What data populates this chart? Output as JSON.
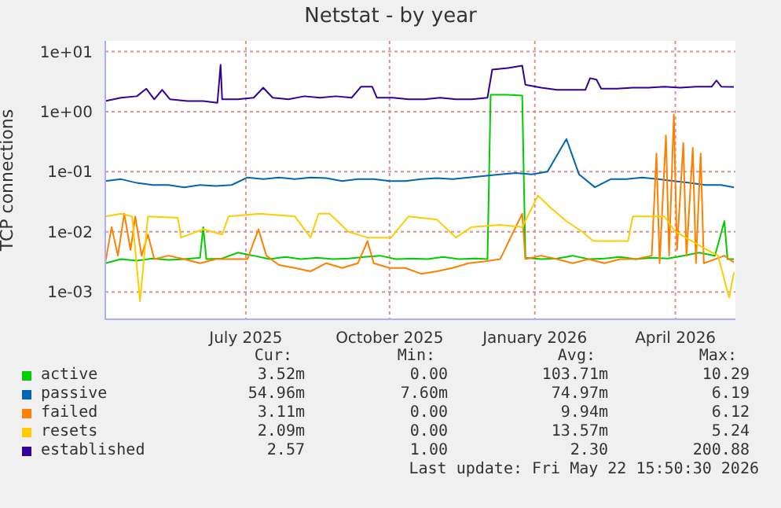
{
  "chart_data": {
    "type": "line",
    "title": "Netstat - by year",
    "ylabel": "TCP connections",
    "log": "y",
    "grid": true,
    "legend": "bottom",
    "marker": "none",
    "line_style": "solid",
    "xlim": [
      "2025-04-19",
      "2026-05-23"
    ],
    "xticks": [
      {
        "value": "2025-07-17",
        "label": "July 2025"
      },
      {
        "value": "2025-10-16",
        "label": "October 2025"
      },
      {
        "value": "2026-01-16",
        "label": "January 2026"
      },
      {
        "value": "2026-04-15",
        "label": "April 2026"
      }
    ],
    "ylim": [
      0.00035,
      15
    ],
    "yticks": [
      {
        "value": 0.001,
        "label": "1e-03"
      },
      {
        "value": 0.01,
        "label": "1e-02"
      },
      {
        "value": 0.1,
        "label": "1e-01"
      },
      {
        "value": 1,
        "label": "1e+00"
      },
      {
        "value": 10,
        "label": "1e+01"
      }
    ],
    "series": [
      {
        "name": "active",
        "color": "#00cc00",
        "x": [
          "2025-04-19",
          "2025-04-29",
          "2025-05-09",
          "2025-05-19",
          "2025-05-29",
          "2025-06-08",
          "2025-06-18",
          "2025-06-20",
          "2025-06-22",
          "2025-07-02",
          "2025-07-12",
          "2025-07-22",
          "2025-08-01",
          "2025-08-11",
          "2025-08-21",
          "2025-08-31",
          "2025-09-10",
          "2025-09-20",
          "2025-09-30",
          "2025-10-10",
          "2025-10-20",
          "2025-10-30",
          "2025-11-09",
          "2025-11-19",
          "2025-11-29",
          "2025-12-09",
          "2025-12-17",
          "2025-12-19",
          "2025-12-29",
          "2026-01-08",
          "2026-01-10",
          "2026-01-20",
          "2026-01-30",
          "2026-02-09",
          "2026-02-19",
          "2026-03-01",
          "2026-03-11",
          "2026-03-21",
          "2026-03-31",
          "2026-04-10",
          "2026-04-20",
          "2026-04-30",
          "2026-05-10",
          "2026-05-16",
          "2026-05-18",
          "2026-05-22"
        ],
        "values": [
          0.003,
          0.0035,
          0.0033,
          0.0036,
          0.0034,
          0.0035,
          0.0037,
          0.012,
          0.0035,
          0.0036,
          0.0045,
          0.004,
          0.0035,
          0.0038,
          0.0035,
          0.0037,
          0.0035,
          0.0036,
          0.0038,
          0.004,
          0.0035,
          0.0036,
          0.0035,
          0.0038,
          0.0035,
          0.0036,
          0.0035,
          1.9,
          1.9,
          1.85,
          0.0037,
          0.0035,
          0.0036,
          0.004,
          0.0035,
          0.0036,
          0.0038,
          0.0035,
          0.0037,
          0.0036,
          0.004,
          0.0045,
          0.004,
          0.015,
          0.0035,
          0.0035
        ]
      },
      {
        "name": "passive",
        "color": "#0066b3",
        "x": [
          "2025-04-19",
          "2025-04-29",
          "2025-05-09",
          "2025-05-19",
          "2025-05-29",
          "2025-06-08",
          "2025-06-18",
          "2025-06-28",
          "2025-07-08",
          "2025-07-18",
          "2025-07-28",
          "2025-08-07",
          "2025-08-17",
          "2025-08-27",
          "2025-09-06",
          "2025-09-16",
          "2025-09-26",
          "2025-10-06",
          "2025-10-16",
          "2025-10-26",
          "2025-11-05",
          "2025-11-15",
          "2025-11-25",
          "2025-12-05",
          "2025-12-15",
          "2025-12-25",
          "2026-01-04",
          "2026-01-14",
          "2026-01-24",
          "2026-02-05",
          "2026-02-13",
          "2026-02-23",
          "2026-03-05",
          "2026-03-15",
          "2026-03-25",
          "2026-04-04",
          "2026-04-14",
          "2026-04-24",
          "2026-05-04",
          "2026-05-14",
          "2026-05-22"
        ],
        "values": [
          0.07,
          0.075,
          0.065,
          0.06,
          0.06,
          0.055,
          0.06,
          0.058,
          0.06,
          0.08,
          0.075,
          0.08,
          0.075,
          0.08,
          0.078,
          0.07,
          0.075,
          0.075,
          0.07,
          0.07,
          0.075,
          0.078,
          0.075,
          0.08,
          0.085,
          0.09,
          0.095,
          0.09,
          0.1,
          0.35,
          0.09,
          0.055,
          0.075,
          0.075,
          0.08,
          0.075,
          0.07,
          0.065,
          0.06,
          0.06,
          0.055
        ]
      },
      {
        "name": "failed",
        "color": "#ff8000",
        "x": [
          "2025-04-19",
          "2025-04-23",
          "2025-04-27",
          "2025-05-01",
          "2025-05-05",
          "2025-05-08",
          "2025-05-12",
          "2025-05-16",
          "2025-05-20",
          "2025-05-29",
          "2025-06-08",
          "2025-06-18",
          "2025-06-28",
          "2025-07-08",
          "2025-07-18",
          "2025-07-25",
          "2025-07-30",
          "2025-08-07",
          "2025-08-17",
          "2025-08-27",
          "2025-09-06",
          "2025-09-16",
          "2025-09-26",
          "2025-10-02",
          "2025-10-06",
          "2025-10-16",
          "2025-10-26",
          "2025-11-05",
          "2025-11-15",
          "2025-11-25",
          "2025-12-05",
          "2025-12-15",
          "2025-12-25",
          "2026-01-08",
          "2026-01-10",
          "2026-01-20",
          "2026-01-30",
          "2026-02-09",
          "2026-02-19",
          "2026-03-01",
          "2026-03-11",
          "2026-03-21",
          "2026-03-31",
          "2026-04-03",
          "2026-04-05",
          "2026-04-09",
          "2026-04-11",
          "2026-04-14",
          "2026-04-16",
          "2026-04-20",
          "2026-04-22",
          "2026-04-26",
          "2026-04-28",
          "2026-05-01",
          "2026-05-03",
          "2026-05-10",
          "2026-05-16",
          "2026-05-22"
        ],
        "values": [
          0.003,
          0.012,
          0.004,
          0.02,
          0.005,
          0.018,
          0.004,
          0.009,
          0.0035,
          0.004,
          0.0035,
          0.003,
          0.0035,
          0.0035,
          0.0035,
          0.011,
          0.004,
          0.0028,
          0.0025,
          0.0022,
          0.003,
          0.0025,
          0.003,
          0.007,
          0.003,
          0.0025,
          0.0025,
          0.002,
          0.0022,
          0.0025,
          0.003,
          0.0032,
          0.0035,
          0.02,
          0.0035,
          0.004,
          0.0035,
          0.003,
          0.0035,
          0.003,
          0.0035,
          0.0035,
          0.004,
          0.2,
          0.003,
          0.4,
          0.004,
          0.9,
          0.005,
          0.3,
          0.004,
          0.25,
          0.003,
          0.2,
          0.003,
          0.0035,
          0.004,
          0.0031
        ]
      },
      {
        "name": "resets",
        "color": "#ffcc00",
        "x": [
          "2025-04-19",
          "2025-04-29",
          "2025-05-06",
          "2025-05-11",
          "2025-05-16",
          "2025-06-04",
          "2025-06-06",
          "2025-06-20",
          "2025-07-02",
          "2025-07-06",
          "2025-07-26",
          "2025-08-17",
          "2025-08-27",
          "2025-09-01",
          "2025-09-08",
          "2025-09-20",
          "2025-10-02",
          "2025-10-17",
          "2025-10-28",
          "2025-11-15",
          "2025-11-27",
          "2025-12-07",
          "2025-12-25",
          "2026-01-08",
          "2026-01-18",
          "2026-01-26",
          "2026-02-05",
          "2026-02-15",
          "2026-02-22",
          "2026-03-16",
          "2026-03-19",
          "2026-04-08",
          "2026-04-15",
          "2026-05-05",
          "2026-05-12",
          "2026-05-19",
          "2026-05-22"
        ],
        "values": [
          0.018,
          0.02,
          0.018,
          0.0007,
          0.018,
          0.017,
          0.008,
          0.011,
          0.009,
          0.018,
          0.02,
          0.018,
          0.008,
          0.02,
          0.02,
          0.01,
          0.008,
          0.008,
          0.018,
          0.016,
          0.008,
          0.012,
          0.013,
          0.012,
          0.04,
          0.025,
          0.015,
          0.01,
          0.007,
          0.007,
          0.018,
          0.018,
          0.01,
          0.005,
          0.004,
          0.0008,
          0.0021
        ]
      },
      {
        "name": "established",
        "color": "#330099",
        "x": [
          "2025-04-19",
          "2025-04-29",
          "2025-05-09",
          "2025-05-15",
          "2025-05-20",
          "2025-05-25",
          "2025-05-30",
          "2025-06-10",
          "2025-06-20",
          "2025-06-29",
          "2025-07-01",
          "2025-07-02",
          "2025-07-12",
          "2025-07-22",
          "2025-07-28",
          "2025-08-03",
          "2025-08-13",
          "2025-08-23",
          "2025-09-02",
          "2025-09-12",
          "2025-09-22",
          "2025-09-28",
          "2025-10-05",
          "2025-10-08",
          "2025-10-18",
          "2025-10-28",
          "2025-11-07",
          "2025-11-17",
          "2025-11-27",
          "2025-12-07",
          "2025-12-17",
          "2025-12-20",
          "2025-12-30",
          "2026-01-08",
          "2026-01-10",
          "2026-01-20",
          "2026-01-30",
          "2026-02-09",
          "2026-02-17",
          "2026-02-20",
          "2026-02-24",
          "2026-02-27",
          "2026-03-09",
          "2026-03-19",
          "2026-03-29",
          "2026-04-08",
          "2026-04-18",
          "2026-04-28",
          "2026-05-08",
          "2026-05-11",
          "2026-05-14",
          "2026-05-22"
        ],
        "values": [
          1.5,
          1.7,
          1.8,
          2.4,
          1.6,
          2.3,
          1.6,
          1.5,
          1.5,
          1.4,
          6,
          1.6,
          1.6,
          1.7,
          2.5,
          1.7,
          1.6,
          1.8,
          1.7,
          1.8,
          1.7,
          2.6,
          2.6,
          1.7,
          1.7,
          1.6,
          1.6,
          1.7,
          1.6,
          1.6,
          1.7,
          5,
          5.3,
          5.8,
          2.8,
          2.5,
          2.3,
          2.3,
          2.3,
          3.6,
          3.4,
          2.4,
          2.4,
          2.5,
          2.5,
          2.6,
          2.5,
          2.6,
          2.6,
          3.3,
          2.6,
          2.57
        ]
      }
    ],
    "annotations": [
      "Cur:",
      "Min:",
      "Avg:",
      "Max:",
      "3.52m",
      "0.00",
      "103.71m",
      "10.29",
      "54.96m",
      "7.60m",
      "74.97m",
      "6.19",
      "3.11m",
      "0.00",
      "9.94m",
      "6.12",
      "2.09m",
      "0.00",
      "13.57m",
      "5.24",
      "2.57",
      "1.00",
      "2.30",
      "200.88",
      "Last update: Fri May 22 15:50:30 2026"
    ]
  }
}
